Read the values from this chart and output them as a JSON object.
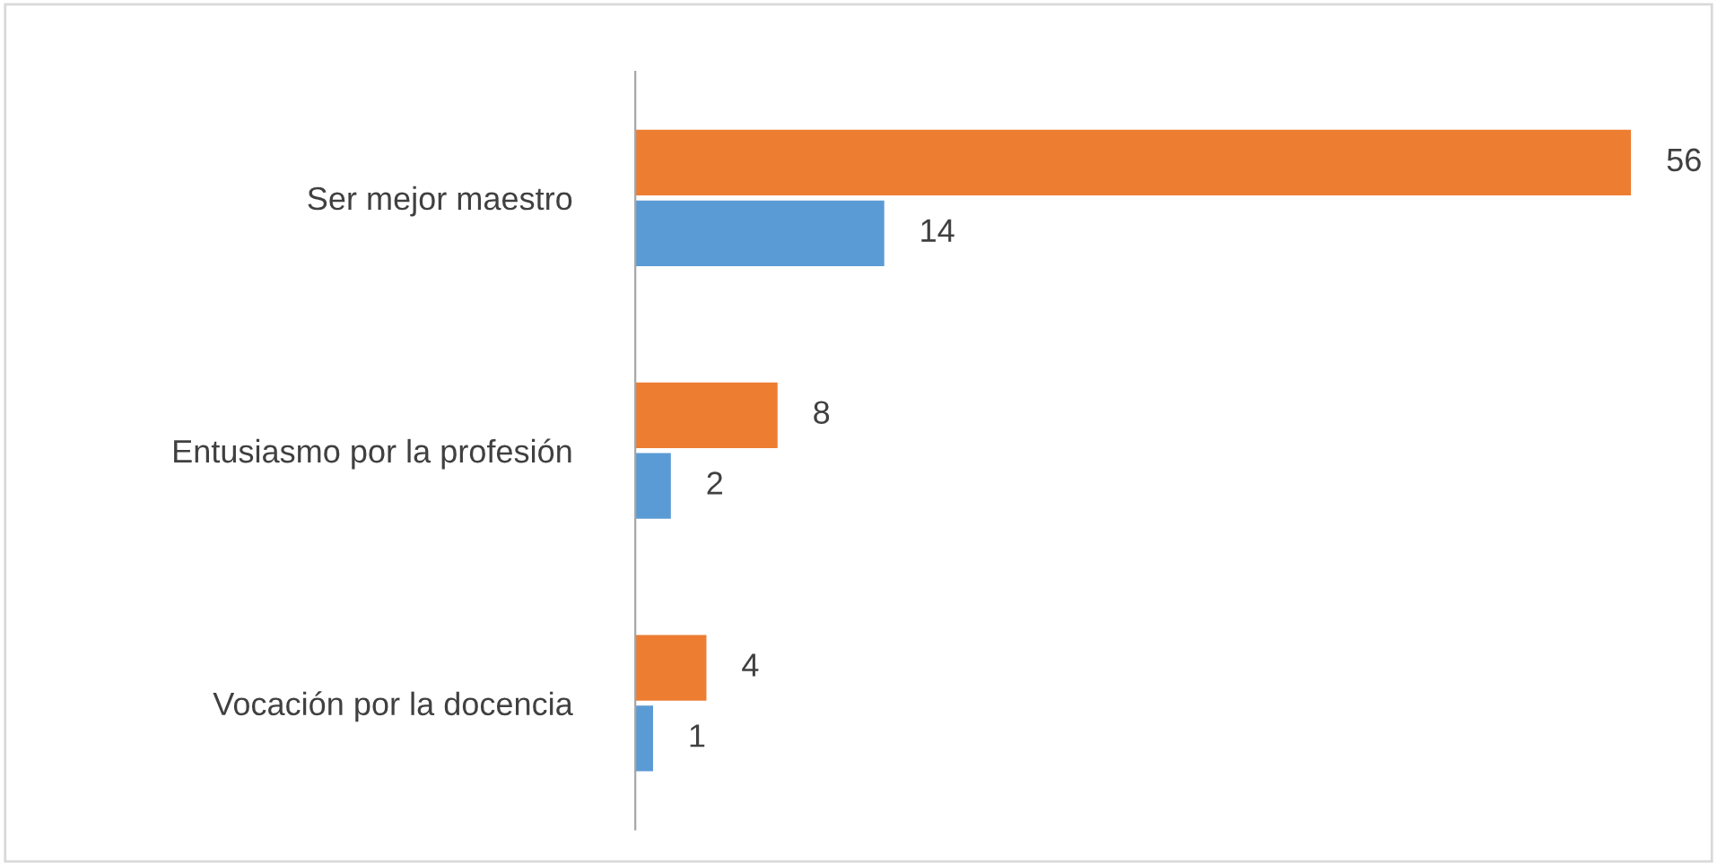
{
  "chart_data": {
    "type": "bar",
    "orientation": "horizontal",
    "categories": [
      "Ser mejor maestro",
      "Entusiasmo por la profesión",
      "Vocación por la docencia"
    ],
    "series": [
      {
        "color": "#ed7d31",
        "values": [
          56,
          8,
          4
        ]
      },
      {
        "color": "#5b9bd5",
        "values": [
          14,
          2,
          1
        ]
      }
    ],
    "data_labels": true,
    "grid": false,
    "legend": false,
    "tick_labels": "y"
  }
}
